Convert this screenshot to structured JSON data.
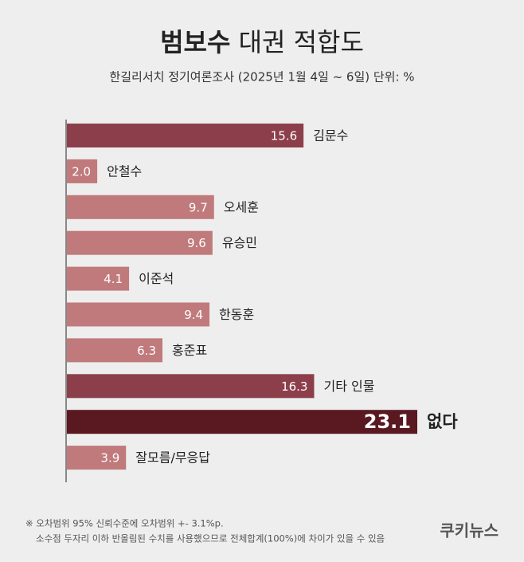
{
  "chart_data": {
    "type": "bar",
    "title": [
      "범보수",
      "대권 적합도"
    ],
    "subtitle": "한길리서치 정기여론조사 (2025년 1월 4일 ~ 6일) 단위: %",
    "categories": [
      "김문수",
      "안철수",
      "오세훈",
      "유승민",
      "이준석",
      "한동훈",
      "홍준표",
      "기타 인물",
      "없다",
      "잘모름/무응답"
    ],
    "values": [
      15.6,
      2.0,
      9.7,
      9.6,
      4.1,
      9.4,
      6.3,
      16.3,
      23.1,
      3.9
    ],
    "value_labels": [
      "15.6",
      "2.0",
      "9.7",
      "9.6",
      "4.1",
      "9.4",
      "6.3",
      "16.3",
      "23.1",
      "3.9"
    ],
    "colors": [
      "#8c3f4b",
      "#c07a7c",
      "#c07a7c",
      "#c07a7c",
      "#c07a7c",
      "#c07a7c",
      "#c07a7c",
      "#8c3f4b",
      "#5a1821",
      "#c07a7c"
    ],
    "notes": [
      "※ 오차범위 95% 신뢰수준에 오차범위 +- 3.1%p.",
      "소수점 두자리 이하 반올림된 수치를 사용했으므로 전체합계(100%)에 차이가 있을 수 있음"
    ],
    "source": "쿠키뉴스"
  }
}
